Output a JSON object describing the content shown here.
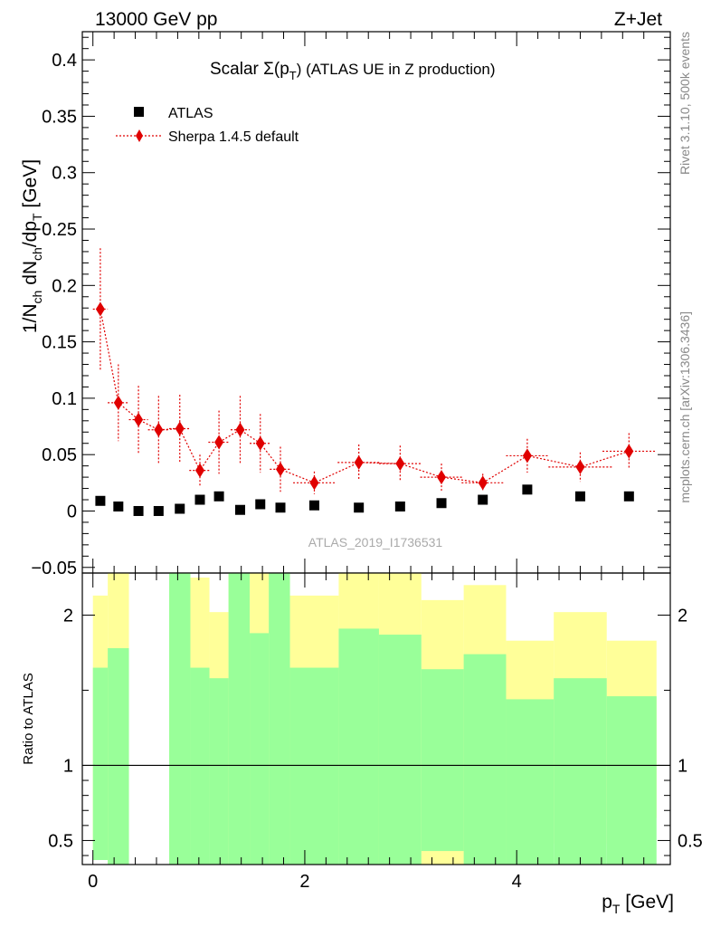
{
  "header": {
    "left_label": "13000 GeV pp",
    "right_label": "Z+Jet",
    "plot_title_main": "Scalar Σ(p",
    "plot_title_sub": "T",
    "plot_title_rest": ") (ATLAS UE in Z production)",
    "side_note_top": "Rivet 3.1.10,  500k events",
    "side_note_bottom": "mcplots.cern.ch [arXiv:1306.3436]",
    "watermark": "ATLAS_2019_I1736531"
  },
  "y_axis_title": {
    "t1": "1/N",
    "t2": "ch",
    "t3": " dN",
    "t4": "ch",
    "t5": "/dp",
    "t6": "T",
    "t7": " [GeV]"
  },
  "x_axis_title": {
    "t1": "p",
    "t2": "T",
    "t3": " [GeV]"
  },
  "ratio_axis_title": "Ratio to ATLAS",
  "colors": {
    "data": "#000000",
    "mc": "#e00000",
    "band_green": "#99ff99",
    "band_yellow": "#ffff99"
  },
  "chart_data": [
    {
      "type": "scatter",
      "panel": "main",
      "xlim": [
        -0.1,
        5.45
      ],
      "ylim": [
        -0.055,
        0.425
      ],
      "yticks": [
        -0.05,
        0,
        0.05,
        0.1,
        0.15,
        0.2,
        0.25,
        0.3,
        0.35,
        0.4
      ],
      "ytick_labels": [
        "−0.05",
        "0",
        "0.05",
        "0.1",
        "0.15",
        "0.2",
        "0.25",
        "0.3",
        "0.35",
        "0.4"
      ],
      "legend": {
        "placement": "top-left",
        "entries": [
          "ATLAS",
          "Sherpa 1.4.5 default"
        ]
      },
      "series": [
        {
          "name": "ATLAS",
          "marker": "square",
          "x": [
            0.07,
            0.24,
            0.43,
            0.62,
            0.82,
            1.01,
            1.19,
            1.39,
            1.58,
            1.77,
            2.09,
            2.51,
            2.9,
            3.29,
            3.68,
            4.1,
            4.6,
            5.06
          ],
          "y": [
            0.009,
            0.004,
            0.0,
            0.0,
            0.002,
            0.01,
            0.013,
            0.001,
            0.006,
            0.003,
            0.005,
            0.003,
            0.004,
            0.007,
            0.01,
            0.019,
            0.013,
            0.013
          ]
        },
        {
          "name": "Sherpa 1.4.5 default",
          "marker": "diamond",
          "line": "dotted",
          "x": [
            0.07,
            0.24,
            0.43,
            0.62,
            0.82,
            1.01,
            1.19,
            1.39,
            1.58,
            1.77,
            2.09,
            2.51,
            2.9,
            3.29,
            3.68,
            4.1,
            4.6,
            5.06
          ],
          "y": [
            0.179,
            0.096,
            0.081,
            0.072,
            0.073,
            0.036,
            0.061,
            0.072,
            0.06,
            0.037,
            0.025,
            0.043,
            0.042,
            0.03,
            0.025,
            0.049,
            0.039,
            0.053
          ],
          "yerr": [
            0.054,
            0.034,
            0.03,
            0.03,
            0.03,
            0.014,
            0.028,
            0.03,
            0.026,
            0.02,
            0.01,
            0.016,
            0.016,
            0.012,
            0.008,
            0.015,
            0.013,
            0.016
          ],
          "xerr": [
            0.07,
            0.1,
            0.09,
            0.1,
            0.1,
            0.1,
            0.1,
            0.09,
            0.1,
            0.1,
            0.2,
            0.2,
            0.2,
            0.2,
            0.2,
            0.2,
            0.3,
            0.25
          ]
        }
      ]
    },
    {
      "type": "area",
      "panel": "ratio",
      "ylabel": "Ratio to ATLAS",
      "ylim": [
        0.34,
        2.28
      ],
      "yticks": [
        0.5,
        1,
        2
      ],
      "ytick_labels": [
        "0.5",
        "1",
        "2"
      ],
      "xlim": [
        -0.1,
        5.45
      ],
      "xticks": [
        0,
        2,
        4
      ],
      "xtick_labels": [
        "0",
        "2",
        "4"
      ],
      "reference_line": 1,
      "bins": [
        {
          "lo": 0.0,
          "hi": 0.14,
          "green": [
            0.37,
            1.65
          ],
          "yellow": [
            0.4,
            2.13
          ]
        },
        {
          "lo": 0.14,
          "hi": 0.34,
          "green": [
            0.3,
            1.78
          ],
          "yellow": [
            0.3,
            2.5
          ]
        },
        {
          "lo": 0.34,
          "hi": 0.72,
          "green": null,
          "yellow": null
        },
        {
          "lo": 0.72,
          "hi": 0.92,
          "green": [
            0.3,
            2.5
          ],
          "yellow": [
            0.3,
            2.5
          ]
        },
        {
          "lo": 0.92,
          "hi": 1.1,
          "green": [
            0.3,
            1.65
          ],
          "yellow": [
            0.3,
            2.25
          ]
        },
        {
          "lo": 1.1,
          "hi": 1.28,
          "green": [
            0.3,
            1.58
          ],
          "yellow": [
            0.48,
            2.02
          ]
        },
        {
          "lo": 1.28,
          "hi": 1.48,
          "green": [
            0.3,
            2.5
          ],
          "yellow": [
            0.3,
            2.5
          ]
        },
        {
          "lo": 1.48,
          "hi": 1.66,
          "green": [
            0.3,
            1.88
          ],
          "yellow": [
            0.3,
            2.5
          ]
        },
        {
          "lo": 1.66,
          "hi": 1.86,
          "green": [
            0.3,
            2.5
          ],
          "yellow": [
            0.3,
            2.5
          ]
        },
        {
          "lo": 1.86,
          "hi": 2.32,
          "green": [
            0.3,
            1.65
          ],
          "yellow": [
            0.38,
            2.13
          ]
        },
        {
          "lo": 2.32,
          "hi": 2.7,
          "green": [
            0.3,
            1.91
          ],
          "yellow": [
            0.3,
            2.5
          ]
        },
        {
          "lo": 2.7,
          "hi": 3.1,
          "green": [
            0.3,
            1.87
          ],
          "yellow": [
            0.3,
            2.5
          ]
        },
        {
          "lo": 3.1,
          "hi": 3.5,
          "green": [
            0.43,
            1.64
          ],
          "yellow": [
            0.3,
            2.1
          ]
        },
        {
          "lo": 3.5,
          "hi": 3.9,
          "green": [
            0.3,
            1.74
          ],
          "yellow": [
            0.3,
            2.2
          ]
        },
        {
          "lo": 3.9,
          "hi": 4.35,
          "green": [
            0.3,
            1.44
          ],
          "yellow": [
            0.67,
            1.83
          ]
        },
        {
          "lo": 4.35,
          "hi": 4.85,
          "green": [
            0.3,
            1.58
          ],
          "yellow": [
            0.48,
            2.02
          ]
        },
        {
          "lo": 4.85,
          "hi": 5.32,
          "green": [
            0.3,
            1.46
          ],
          "yellow": [
            0.65,
            1.83
          ]
        }
      ]
    }
  ]
}
